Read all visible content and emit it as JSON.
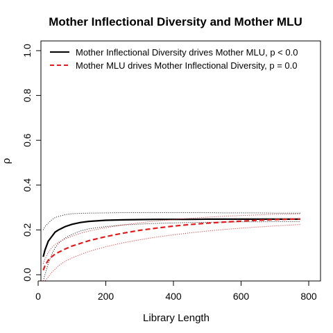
{
  "chart_data": {
    "type": "line",
    "title": "Mother Inflectional Diversity and Mother MLU",
    "xlabel": "Library Length",
    "ylabel": "ρ",
    "xlim": [
      0,
      800
    ],
    "ylim": [
      0.0,
      1.0
    ],
    "x_ticks": [
      "0",
      "200",
      "400",
      "600",
      "800"
    ],
    "y_ticks": [
      "0.0",
      "0.2",
      "0.4",
      "0.6",
      "0.8",
      "1.0"
    ],
    "grid": false,
    "legend_position": "top-left",
    "legend": [
      "Mother Inflectional Diversity drives Mother MLU, p < 0.0",
      "Mother MLU drives Mother Inflectional Diversity, p = 0.0"
    ],
    "x": [
      15,
      20,
      30,
      40,
      50,
      60,
      80,
      100,
      125,
      150,
      200,
      250,
      300,
      350,
      400,
      450,
      500,
      550,
      600,
      650,
      700,
      750,
      775
    ],
    "series": [
      {
        "name": "Mother Inflectional Diversity drives Mother MLU, p < 0.0",
        "color": "#000000",
        "style": "solid",
        "values": [
          0.08,
          0.11,
          0.15,
          0.17,
          0.19,
          0.2,
          0.215,
          0.225,
          0.233,
          0.238,
          0.243,
          0.245,
          0.246,
          0.247,
          0.247,
          0.247,
          0.248,
          0.248,
          0.248,
          0.248,
          0.248,
          0.248,
          0.248
        ],
        "upper": [
          0.2,
          0.215,
          0.23,
          0.245,
          0.255,
          0.26,
          0.268,
          0.272,
          0.274,
          0.275,
          0.276,
          0.277,
          0.277,
          0.277,
          0.277,
          0.277,
          0.277,
          0.276,
          0.276,
          0.276,
          0.275,
          0.275,
          0.275
        ],
        "lower": [
          -0.04,
          0.0,
          0.05,
          0.09,
          0.12,
          0.14,
          0.165,
          0.18,
          0.195,
          0.205,
          0.215,
          0.222,
          0.226,
          0.229,
          0.231,
          0.233,
          0.234,
          0.235,
          0.236,
          0.236,
          0.237,
          0.237,
          0.237
        ]
      },
      {
        "name": "Mother MLU drives Mother Inflectional Diversity, p = 0.0",
        "color": "#e31a1c",
        "style": "dashed",
        "values": [
          0.02,
          0.04,
          0.065,
          0.08,
          0.092,
          0.1,
          0.115,
          0.128,
          0.14,
          0.152,
          0.17,
          0.185,
          0.198,
          0.208,
          0.217,
          0.224,
          0.23,
          0.235,
          0.239,
          0.243,
          0.246,
          0.248,
          0.249
        ],
        "upper": [
          0.05,
          0.07,
          0.1,
          0.12,
          0.135,
          0.145,
          0.16,
          0.172,
          0.185,
          0.195,
          0.21,
          0.222,
          0.232,
          0.24,
          0.246,
          0.252,
          0.257,
          0.261,
          0.264,
          0.267,
          0.27,
          0.271,
          0.272
        ],
        "lower": [
          -0.06,
          -0.04,
          -0.01,
          0.01,
          0.025,
          0.04,
          0.06,
          0.075,
          0.09,
          0.104,
          0.125,
          0.142,
          0.156,
          0.168,
          0.178,
          0.187,
          0.195,
          0.202,
          0.208,
          0.213,
          0.218,
          0.222,
          0.224
        ]
      }
    ]
  }
}
